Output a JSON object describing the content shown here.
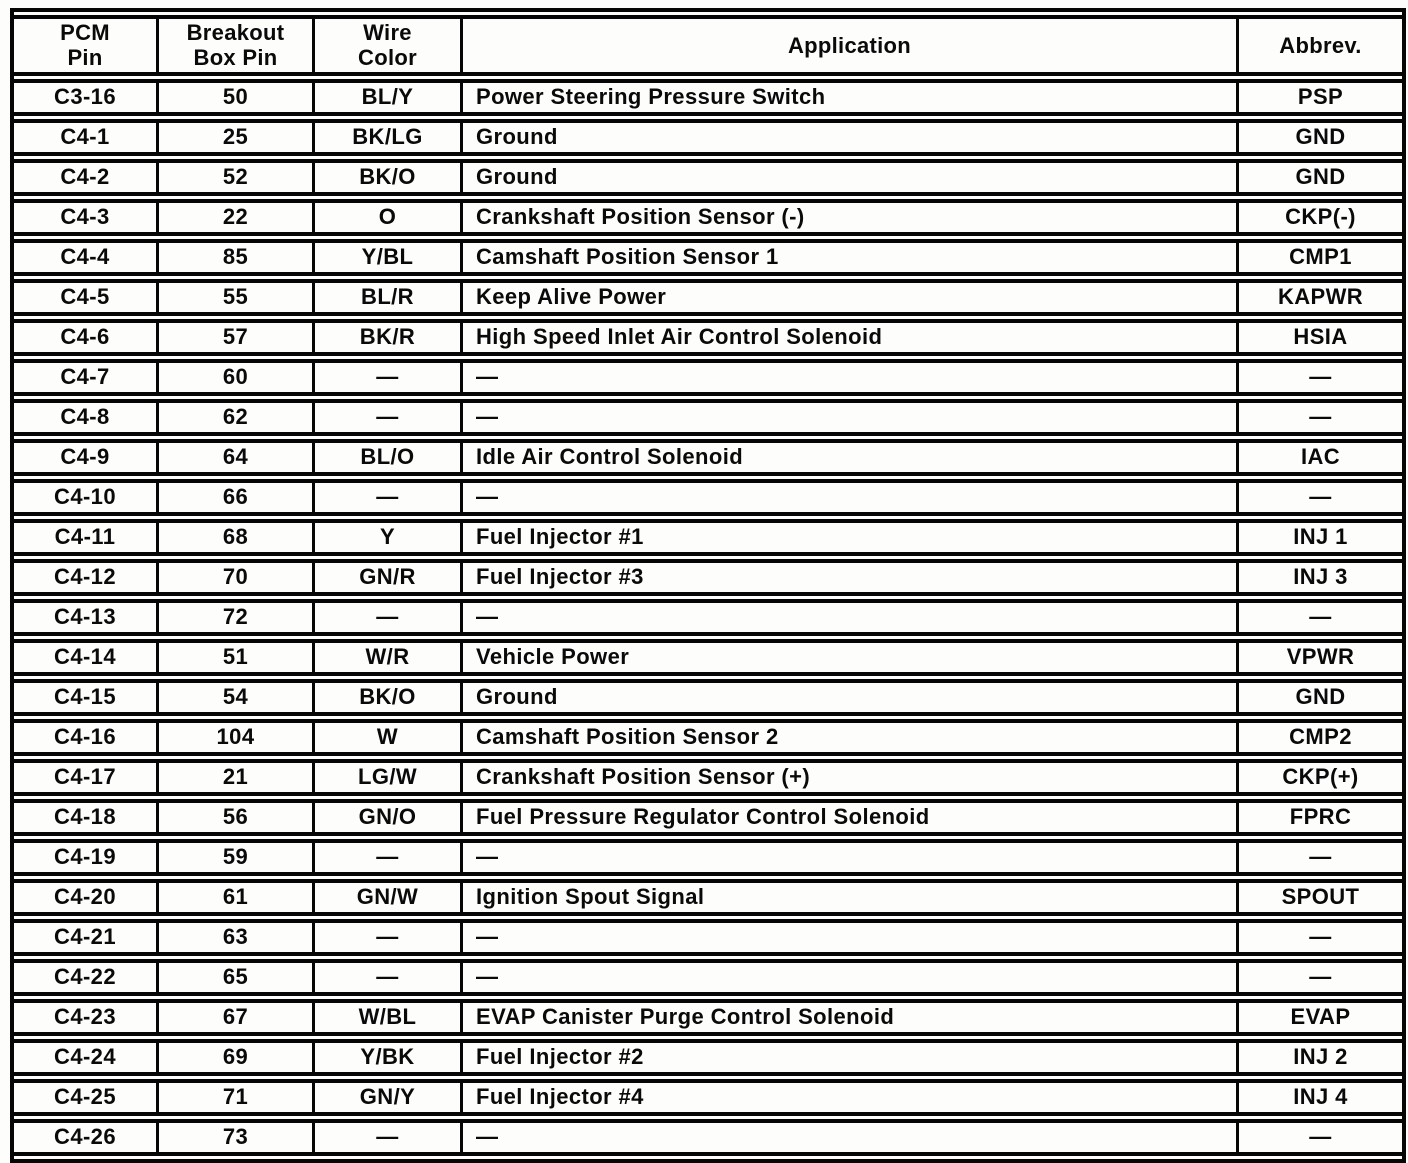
{
  "document": {
    "type": "scanned-pin-assignment-table"
  },
  "colors": {
    "border": "#060606",
    "background": "#fdfdfc",
    "text": "#0a0a0a"
  },
  "table": {
    "headers": [
      "PCM\nPin",
      "Breakout\nBox Pin",
      "Wire\nColor",
      "Application",
      "Abbrev."
    ],
    "empty_marker": "—",
    "rows": [
      [
        "C3-16",
        "50",
        "BL/Y",
        "Power Steering Pressure Switch",
        "PSP"
      ],
      [
        "C4-1",
        "25",
        "BK/LG",
        "Ground",
        "GND"
      ],
      [
        "C4-2",
        "52",
        "BK/O",
        "Ground",
        "GND"
      ],
      [
        "C4-3",
        "22",
        "O",
        "Crankshaft Position Sensor (-)",
        "CKP(-)"
      ],
      [
        "C4-4",
        "85",
        "Y/BL",
        "Camshaft Position Sensor 1",
        "CMP1"
      ],
      [
        "C4-5",
        "55",
        "BL/R",
        "Keep Alive Power",
        "KAPWR"
      ],
      [
        "C4-6",
        "57",
        "BK/R",
        "High Speed Inlet Air Control Solenoid",
        "HSIA"
      ],
      [
        "C4-7",
        "60",
        "—",
        "—",
        "—"
      ],
      [
        "C4-8",
        "62",
        "—",
        "—",
        "—"
      ],
      [
        "C4-9",
        "64",
        "BL/O",
        "Idle Air Control Solenoid",
        "IAC"
      ],
      [
        "C4-10",
        "66",
        "—",
        "—",
        "—"
      ],
      [
        "C4-11",
        "68",
        "Y",
        "Fuel Injector #1",
        "INJ 1"
      ],
      [
        "C4-12",
        "70",
        "GN/R",
        "Fuel Injector #3",
        "INJ 3"
      ],
      [
        "C4-13",
        "72",
        "—",
        "—",
        "—"
      ],
      [
        "C4-14",
        "51",
        "W/R",
        "Vehicle Power",
        "VPWR"
      ],
      [
        "C4-15",
        "54",
        "BK/O",
        "Ground",
        "GND"
      ],
      [
        "C4-16",
        "104",
        "W",
        "Camshaft Position Sensor 2",
        "CMP2"
      ],
      [
        "C4-17",
        "21",
        "LG/W",
        "Crankshaft Position Sensor (+)",
        "CKP(+)"
      ],
      [
        "C4-18",
        "56",
        "GN/O",
        "Fuel Pressure Regulator Control Solenoid",
        "FPRC"
      ],
      [
        "C4-19",
        "59",
        "—",
        "—",
        "—"
      ],
      [
        "C4-20",
        "61",
        "GN/W",
        "Ignition Spout Signal",
        "SPOUT"
      ],
      [
        "C4-21",
        "63",
        "—",
        "—",
        "—"
      ],
      [
        "C4-22",
        "65",
        "—",
        "—",
        "—"
      ],
      [
        "C4-23",
        "67",
        "W/BL",
        "EVAP Canister Purge Control Solenoid",
        "EVAP"
      ],
      [
        "C4-24",
        "69",
        "Y/BK",
        "Fuel Injector #2",
        "INJ 2"
      ],
      [
        "C4-25",
        "71",
        "GN/Y",
        "Fuel Injector #4",
        "INJ 4"
      ],
      [
        "C4-26",
        "73",
        "—",
        "—",
        "—"
      ]
    ]
  }
}
